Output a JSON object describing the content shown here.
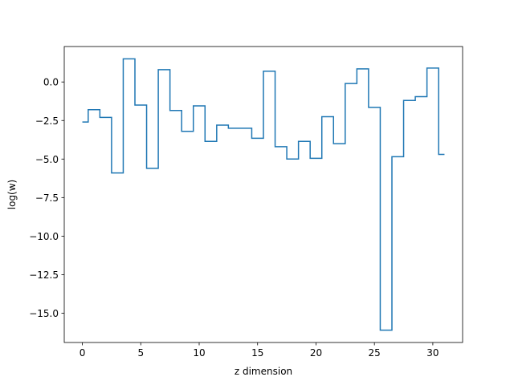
{
  "chart_data": {
    "type": "line",
    "drawstyle": "steps-mid",
    "title": "",
    "xlabel": "z dimension",
    "ylabel": "log(w)",
    "xlim": [
      -1.55,
      32.55
    ],
    "ylim": [
      -16.9,
      2.3
    ],
    "grid": false,
    "xticks": [
      0,
      5,
      10,
      15,
      20,
      25,
      30
    ],
    "xtick_labels": [
      "0",
      "5",
      "10",
      "15",
      "20",
      "25",
      "30"
    ],
    "yticks": [
      0.0,
      -2.5,
      -5.0,
      -7.5,
      -10.0,
      -12.5,
      -15.0
    ],
    "ytick_labels": [
      "0.0",
      "−2.5",
      "−5.0",
      "−7.5",
      "−10.0",
      "−12.5",
      "−15.0"
    ],
    "series": [
      {
        "color": "#1f77b4",
        "x": [
          0,
          1,
          2,
          3,
          4,
          5,
          6,
          7,
          8,
          9,
          10,
          11,
          12,
          13,
          14,
          15,
          16,
          17,
          18,
          19,
          20,
          21,
          22,
          23,
          24,
          25,
          26,
          27,
          28,
          29,
          30,
          31
        ],
        "values": [
          -2.6,
          -1.8,
          -2.3,
          -5.9,
          1.5,
          -1.5,
          -5.6,
          0.8,
          -1.85,
          -3.2,
          -1.55,
          -3.85,
          -2.8,
          -3.0,
          -3.0,
          -3.65,
          0.7,
          -4.2,
          -5.0,
          -3.85,
          -4.95,
          -2.25,
          -4.0,
          -0.1,
          0.85,
          -1.65,
          -16.1,
          -4.85,
          -1.2,
          -0.95,
          0.9,
          -4.7
        ]
      }
    ]
  }
}
